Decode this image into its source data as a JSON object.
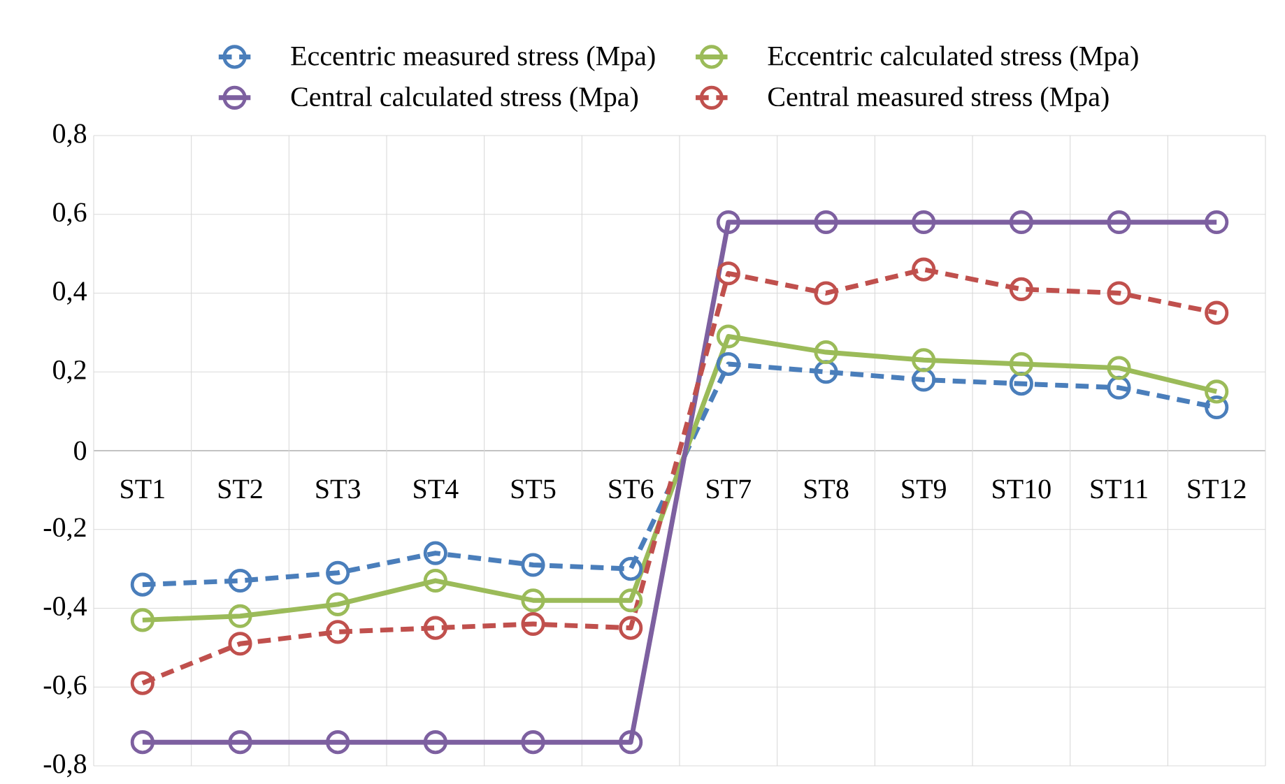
{
  "chart_data": {
    "type": "line",
    "categories": [
      "ST1",
      "ST2",
      "ST3",
      "ST4",
      "ST5",
      "ST6",
      "ST7",
      "ST8",
      "ST9",
      "ST10",
      "ST11",
      "ST12"
    ],
    "series": [
      {
        "name": "Eccentric measured stress (Mpa)",
        "color": "#4a7ebb",
        "line_style": "dashed",
        "values": [
          -0.34,
          -0.33,
          -0.31,
          -0.26,
          -0.29,
          -0.3,
          0.22,
          0.2,
          0.18,
          0.17,
          0.16,
          0.11
        ]
      },
      {
        "name": "Eccentric calculated stress (Mpa)",
        "color": "#9bbb59",
        "line_style": "solid",
        "values": [
          -0.43,
          -0.42,
          -0.39,
          -0.33,
          -0.38,
          -0.38,
          0.29,
          0.25,
          0.23,
          0.22,
          0.21,
          0.15
        ]
      },
      {
        "name": "Central calculated stress (Mpa)",
        "color": "#7d60a0",
        "line_style": "solid",
        "values": [
          -0.74,
          -0.74,
          -0.74,
          -0.74,
          -0.74,
          -0.74,
          0.58,
          0.58,
          0.58,
          0.58,
          0.58,
          0.58
        ]
      },
      {
        "name": "Central measured stress (Mpa)",
        "color": "#c0504d",
        "line_style": "dashed",
        "values": [
          -0.59,
          -0.49,
          -0.46,
          -0.45,
          -0.44,
          -0.45,
          0.45,
          0.4,
          0.46,
          0.41,
          0.4,
          0.35
        ]
      }
    ],
    "ylim": [
      -0.8,
      0.8
    ],
    "yticks": [
      {
        "value": -0.8,
        "label": "-0,8"
      },
      {
        "value": -0.6,
        "label": "-0,6"
      },
      {
        "value": -0.4,
        "label": "-0,4"
      },
      {
        "value": -0.2,
        "label": "-0,2"
      },
      {
        "value": 0,
        "label": "0"
      },
      {
        "value": 0.2,
        "label": "0,2"
      },
      {
        "value": 0.4,
        "label": "0,4"
      },
      {
        "value": 0.6,
        "label": "0,6"
      },
      {
        "value": 0.8,
        "label": "0,8"
      }
    ],
    "grid": true,
    "legend": "top",
    "marker": "circle"
  }
}
